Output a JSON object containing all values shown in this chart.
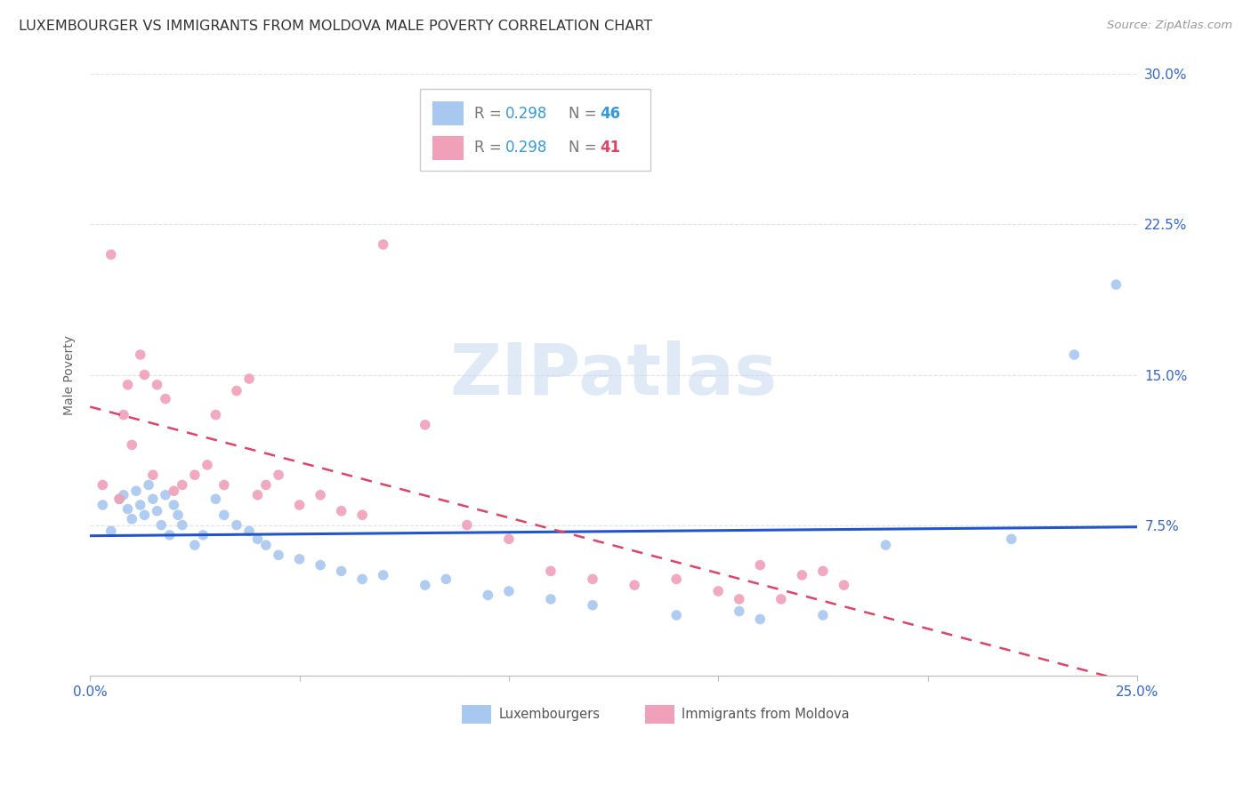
{
  "title": "LUXEMBOURGER VS IMMIGRANTS FROM MOLDOVA MALE POVERTY CORRELATION CHART",
  "source": "Source: ZipAtlas.com",
  "ylabel": "Male Poverty",
  "xlim": [
    0.0,
    0.25
  ],
  "ylim": [
    0.0,
    0.3
  ],
  "xticks": [
    0.0,
    0.05,
    0.1,
    0.15,
    0.2,
    0.25
  ],
  "xticklabels": [
    "0.0%",
    "",
    "",
    "",
    "",
    "25.0%"
  ],
  "yticks": [
    0.0,
    0.075,
    0.15,
    0.225,
    0.3
  ],
  "yticklabels": [
    "",
    "7.5%",
    "15.0%",
    "22.5%",
    "30.0%"
  ],
  "background_color": "#ffffff",
  "grid_color": "#e0e0ee",
  "lux_color": "#a8c8f0",
  "mol_color": "#f0a0b8",
  "lux_line_color": "#2255cc",
  "mol_line_color": "#dd4466",
  "legend_R_lux": "R = 0.298",
  "legend_N_lux": "46",
  "legend_R_mol": "R = 0.298",
  "legend_N_mol": "41",
  "lux_x": [
    0.003,
    0.005,
    0.007,
    0.008,
    0.009,
    0.01,
    0.011,
    0.012,
    0.013,
    0.014,
    0.015,
    0.016,
    0.017,
    0.018,
    0.019,
    0.02,
    0.021,
    0.022,
    0.025,
    0.027,
    0.03,
    0.032,
    0.035,
    0.038,
    0.04,
    0.042,
    0.045,
    0.05,
    0.055,
    0.06,
    0.065,
    0.07,
    0.08,
    0.085,
    0.095,
    0.1,
    0.11,
    0.12,
    0.14,
    0.155,
    0.16,
    0.175,
    0.19,
    0.22,
    0.235,
    0.245
  ],
  "lux_y": [
    0.085,
    0.072,
    0.088,
    0.09,
    0.083,
    0.078,
    0.092,
    0.085,
    0.08,
    0.095,
    0.088,
    0.082,
    0.075,
    0.09,
    0.07,
    0.085,
    0.08,
    0.075,
    0.065,
    0.07,
    0.088,
    0.08,
    0.075,
    0.072,
    0.068,
    0.065,
    0.06,
    0.058,
    0.055,
    0.052,
    0.048,
    0.05,
    0.045,
    0.048,
    0.04,
    0.042,
    0.038,
    0.035,
    0.03,
    0.032,
    0.028,
    0.03,
    0.065,
    0.068,
    0.16,
    0.195
  ],
  "mol_x": [
    0.003,
    0.005,
    0.007,
    0.008,
    0.009,
    0.01,
    0.012,
    0.013,
    0.015,
    0.016,
    0.018,
    0.02,
    0.022,
    0.025,
    0.028,
    0.03,
    0.032,
    0.035,
    0.038,
    0.04,
    0.042,
    0.045,
    0.05,
    0.055,
    0.06,
    0.065,
    0.07,
    0.08,
    0.09,
    0.1,
    0.11,
    0.12,
    0.13,
    0.14,
    0.15,
    0.155,
    0.16,
    0.165,
    0.17,
    0.175,
    0.18
  ],
  "mol_y": [
    0.095,
    0.21,
    0.088,
    0.13,
    0.145,
    0.115,
    0.16,
    0.15,
    0.1,
    0.145,
    0.138,
    0.092,
    0.095,
    0.1,
    0.105,
    0.13,
    0.095,
    0.142,
    0.148,
    0.09,
    0.095,
    0.1,
    0.085,
    0.09,
    0.082,
    0.08,
    0.215,
    0.125,
    0.075,
    0.068,
    0.052,
    0.048,
    0.045,
    0.048,
    0.042,
    0.038,
    0.055,
    0.038,
    0.05,
    0.052,
    0.045
  ],
  "watermark_text": "ZIPatlas",
  "marker_size": 70,
  "title_fontsize": 11.5,
  "axis_label_fontsize": 10,
  "tick_fontsize": 11,
  "legend_fontsize": 12,
  "source_fontsize": 9.5
}
